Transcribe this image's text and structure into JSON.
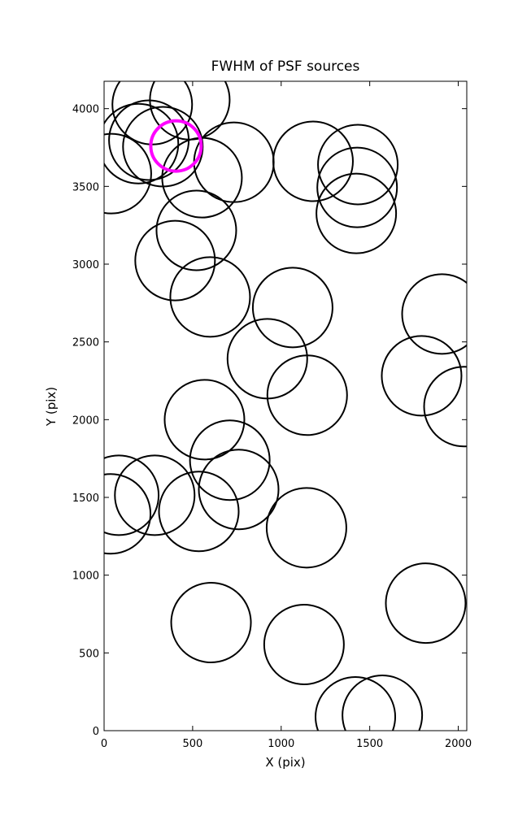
{
  "chart_data": {
    "type": "scatter",
    "title": "FWHM of PSF sources",
    "x_label": "X (pix)",
    "y_label": "Y (pix)",
    "xlim": [
      0,
      2048
    ],
    "ylim": [
      0,
      4176
    ],
    "xticks": [
      0,
      500,
      1000,
      1500,
      2000
    ],
    "yticks": [
      0,
      500,
      1000,
      1500,
      2000,
      2500,
      3000,
      3500,
      4000
    ],
    "series": [
      {
        "color": "#000000",
        "x": [
          272,
          484,
          253,
          194,
          332,
          41,
          553,
          733,
          1180,
          1433,
          1429,
          1424,
          521,
          401,
          599,
          1065,
          1908,
          922,
          1147,
          1793,
          2032,
          567,
          710,
          83,
          286,
          37,
          760,
          535,
          1143,
          1816,
          604,
          1129,
          1419,
          1571
        ],
        "values": [
          4026,
          4057,
          3797,
          3775,
          3755,
          3582,
          3556,
          3655,
          3661,
          3640,
          3493,
          3326,
          3217,
          3023,
          2789,
          2721,
          2679,
          2392,
          2157,
          2282,
          2084,
          2000,
          1739,
          1514,
          1514,
          1394,
          1551,
          1410,
          1305,
          820,
          695,
          554,
          89,
          99
        ]
      },
      {
        "color": "#ff00ff",
        "x": [
          406
        ],
        "values": [
          3760
        ]
      }
    ]
  }
}
